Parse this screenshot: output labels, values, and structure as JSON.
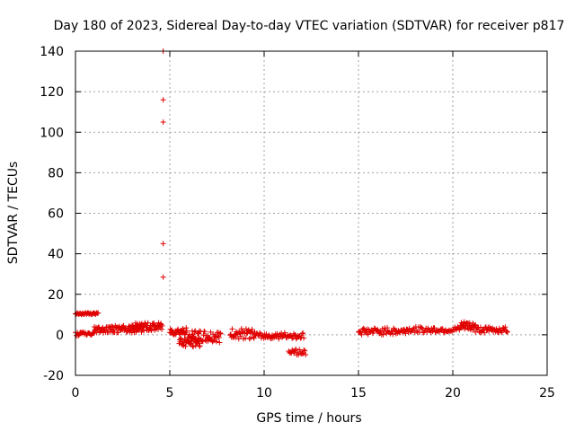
{
  "chart_data": {
    "type": "scatter",
    "title": "Day 180 of 2023, Sidereal Day-to-day VTEC variation (SDTVAR) for receiver p817",
    "xlabel": "GPS time / hours",
    "ylabel": "SDTVAR / TECUs",
    "xlim": [
      0,
      25
    ],
    "ylim": [
      -20,
      140
    ],
    "xticks": [
      0,
      5,
      10,
      15,
      20,
      25
    ],
    "yticks": [
      -20,
      0,
      20,
      40,
      60,
      80,
      100,
      120,
      140
    ],
    "grid": true,
    "marker": "+",
    "color": "#e00000",
    "series": [
      {
        "name": "SDTVAR",
        "segments": [
          {
            "x0": 0.0,
            "x1": 1.2,
            "y0": 10.0,
            "y1": 11.0,
            "n": 28
          },
          {
            "x0": 0.0,
            "x1": 1.0,
            "y0": -0.5,
            "y1": 1.5,
            "n": 22
          },
          {
            "x0": 1.0,
            "x1": 3.5,
            "y0": 1.0,
            "y1": 4.5,
            "n": 80
          },
          {
            "x0": 3.0,
            "x1": 4.6,
            "y0": 2.0,
            "y1": 6.0,
            "n": 60
          },
          {
            "x0": 5.0,
            "x1": 5.9,
            "y0": 0.0,
            "y1": 3.5,
            "n": 32
          },
          {
            "x0": 5.5,
            "x1": 6.6,
            "y0": -6.0,
            "y1": -1.0,
            "n": 44
          },
          {
            "x0": 6.0,
            "x1": 7.7,
            "y0": -4.0,
            "y1": 2.0,
            "n": 55
          },
          {
            "x0": 8.2,
            "x1": 9.5,
            "y0": -2.0,
            "y1": 3.0,
            "n": 38
          },
          {
            "x0": 9.5,
            "x1": 12.1,
            "y0": -2.0,
            "y1": 1.0,
            "n": 60
          },
          {
            "x0": 11.3,
            "x1": 12.2,
            "y0": -10.0,
            "y1": -7.0,
            "n": 20
          },
          {
            "x0": 15.0,
            "x1": 17.5,
            "y0": 0.0,
            "y1": 3.5,
            "n": 60
          },
          {
            "x0": 17.5,
            "x1": 20.4,
            "y0": 1.0,
            "y1": 4.0,
            "n": 60
          },
          {
            "x0": 20.4,
            "x1": 21.2,
            "y0": 2.0,
            "y1": 6.5,
            "n": 30
          },
          {
            "x0": 21.2,
            "x1": 22.9,
            "y0": 1.0,
            "y1": 4.0,
            "n": 44
          }
        ],
        "points": [
          {
            "x": 4.65,
            "y": 140
          },
          {
            "x": 4.65,
            "y": 116
          },
          {
            "x": 4.65,
            "y": 105
          },
          {
            "x": 4.65,
            "y": 45
          },
          {
            "x": 4.65,
            "y": 28.5
          }
        ]
      }
    ]
  }
}
